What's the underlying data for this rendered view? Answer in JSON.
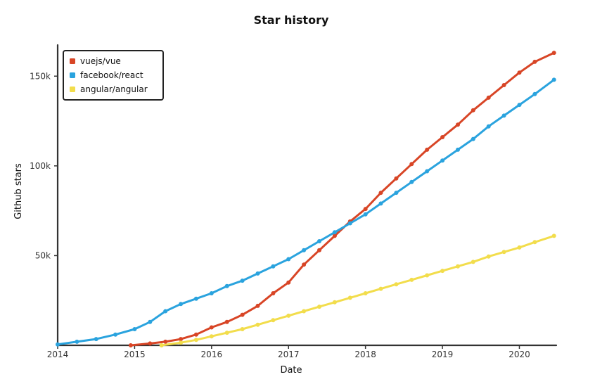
{
  "chart_data": {
    "type": "line",
    "title": "Star history",
    "xlabel": "Date",
    "ylabel": "Github stars",
    "x_ticks": [
      "2014",
      "2015",
      "2016",
      "2017",
      "2018",
      "2019",
      "2020"
    ],
    "y_ticks": [
      "50k",
      "100k",
      "150k"
    ],
    "xlim": [
      2014.0,
      2020.48
    ],
    "ylim": [
      0,
      165000
    ],
    "legend_position": "top-left",
    "grid": false,
    "series": [
      {
        "name": "vuejs/vue",
        "color": "#d84526",
        "x": [
          2014.95,
          2015.2,
          2015.4,
          2015.6,
          2015.8,
          2016.0,
          2016.2,
          2016.4,
          2016.6,
          2016.8,
          2017.0,
          2017.2,
          2017.4,
          2017.6,
          2017.8,
          2018.0,
          2018.2,
          2018.4,
          2018.6,
          2018.8,
          2019.0,
          2019.2,
          2019.4,
          2019.6,
          2019.8,
          2020.0,
          2020.2,
          2020.45
        ],
        "y": [
          0,
          1000,
          2000,
          3500,
          6000,
          10000,
          13000,
          17000,
          22000,
          29000,
          35000,
          45000,
          53000,
          61000,
          69000,
          76000,
          85000,
          93000,
          101000,
          109000,
          116000,
          123000,
          131000,
          138000,
          145000,
          152000,
          158000,
          163000
        ]
      },
      {
        "name": "facebook/react",
        "color": "#2aa3de",
        "x": [
          2014.0,
          2014.25,
          2014.5,
          2014.75,
          2015.0,
          2015.2,
          2015.4,
          2015.6,
          2015.8,
          2016.0,
          2016.2,
          2016.4,
          2016.6,
          2016.8,
          2017.0,
          2017.2,
          2017.4,
          2017.6,
          2017.8,
          2018.0,
          2018.2,
          2018.4,
          2018.6,
          2018.8,
          2019.0,
          2019.2,
          2019.4,
          2019.6,
          2019.8,
          2020.0,
          2020.2,
          2020.45
        ],
        "y": [
          500,
          2000,
          3500,
          6000,
          9000,
          13000,
          19000,
          23000,
          26000,
          29000,
          33000,
          36000,
          40000,
          44000,
          48000,
          53000,
          58000,
          63000,
          68000,
          73000,
          79000,
          85000,
          91000,
          97000,
          103000,
          109000,
          115000,
          122000,
          128000,
          134000,
          140000,
          148000
        ]
      },
      {
        "name": "angular/angular",
        "color": "#f2dd4c",
        "x": [
          2015.35,
          2015.6,
          2015.8,
          2016.0,
          2016.2,
          2016.4,
          2016.6,
          2016.8,
          2017.0,
          2017.2,
          2017.4,
          2017.6,
          2017.8,
          2018.0,
          2018.2,
          2018.4,
          2018.6,
          2018.8,
          2019.0,
          2019.2,
          2019.4,
          2019.6,
          2019.8,
          2020.0,
          2020.2,
          2020.45
        ],
        "y": [
          0,
          1500,
          3000,
          5000,
          7000,
          9000,
          11500,
          14000,
          16500,
          19000,
          21500,
          24000,
          26500,
          29000,
          31500,
          34000,
          36500,
          39000,
          41500,
          44000,
          46500,
          49500,
          52000,
          54500,
          57500,
          61000
        ]
      }
    ]
  }
}
